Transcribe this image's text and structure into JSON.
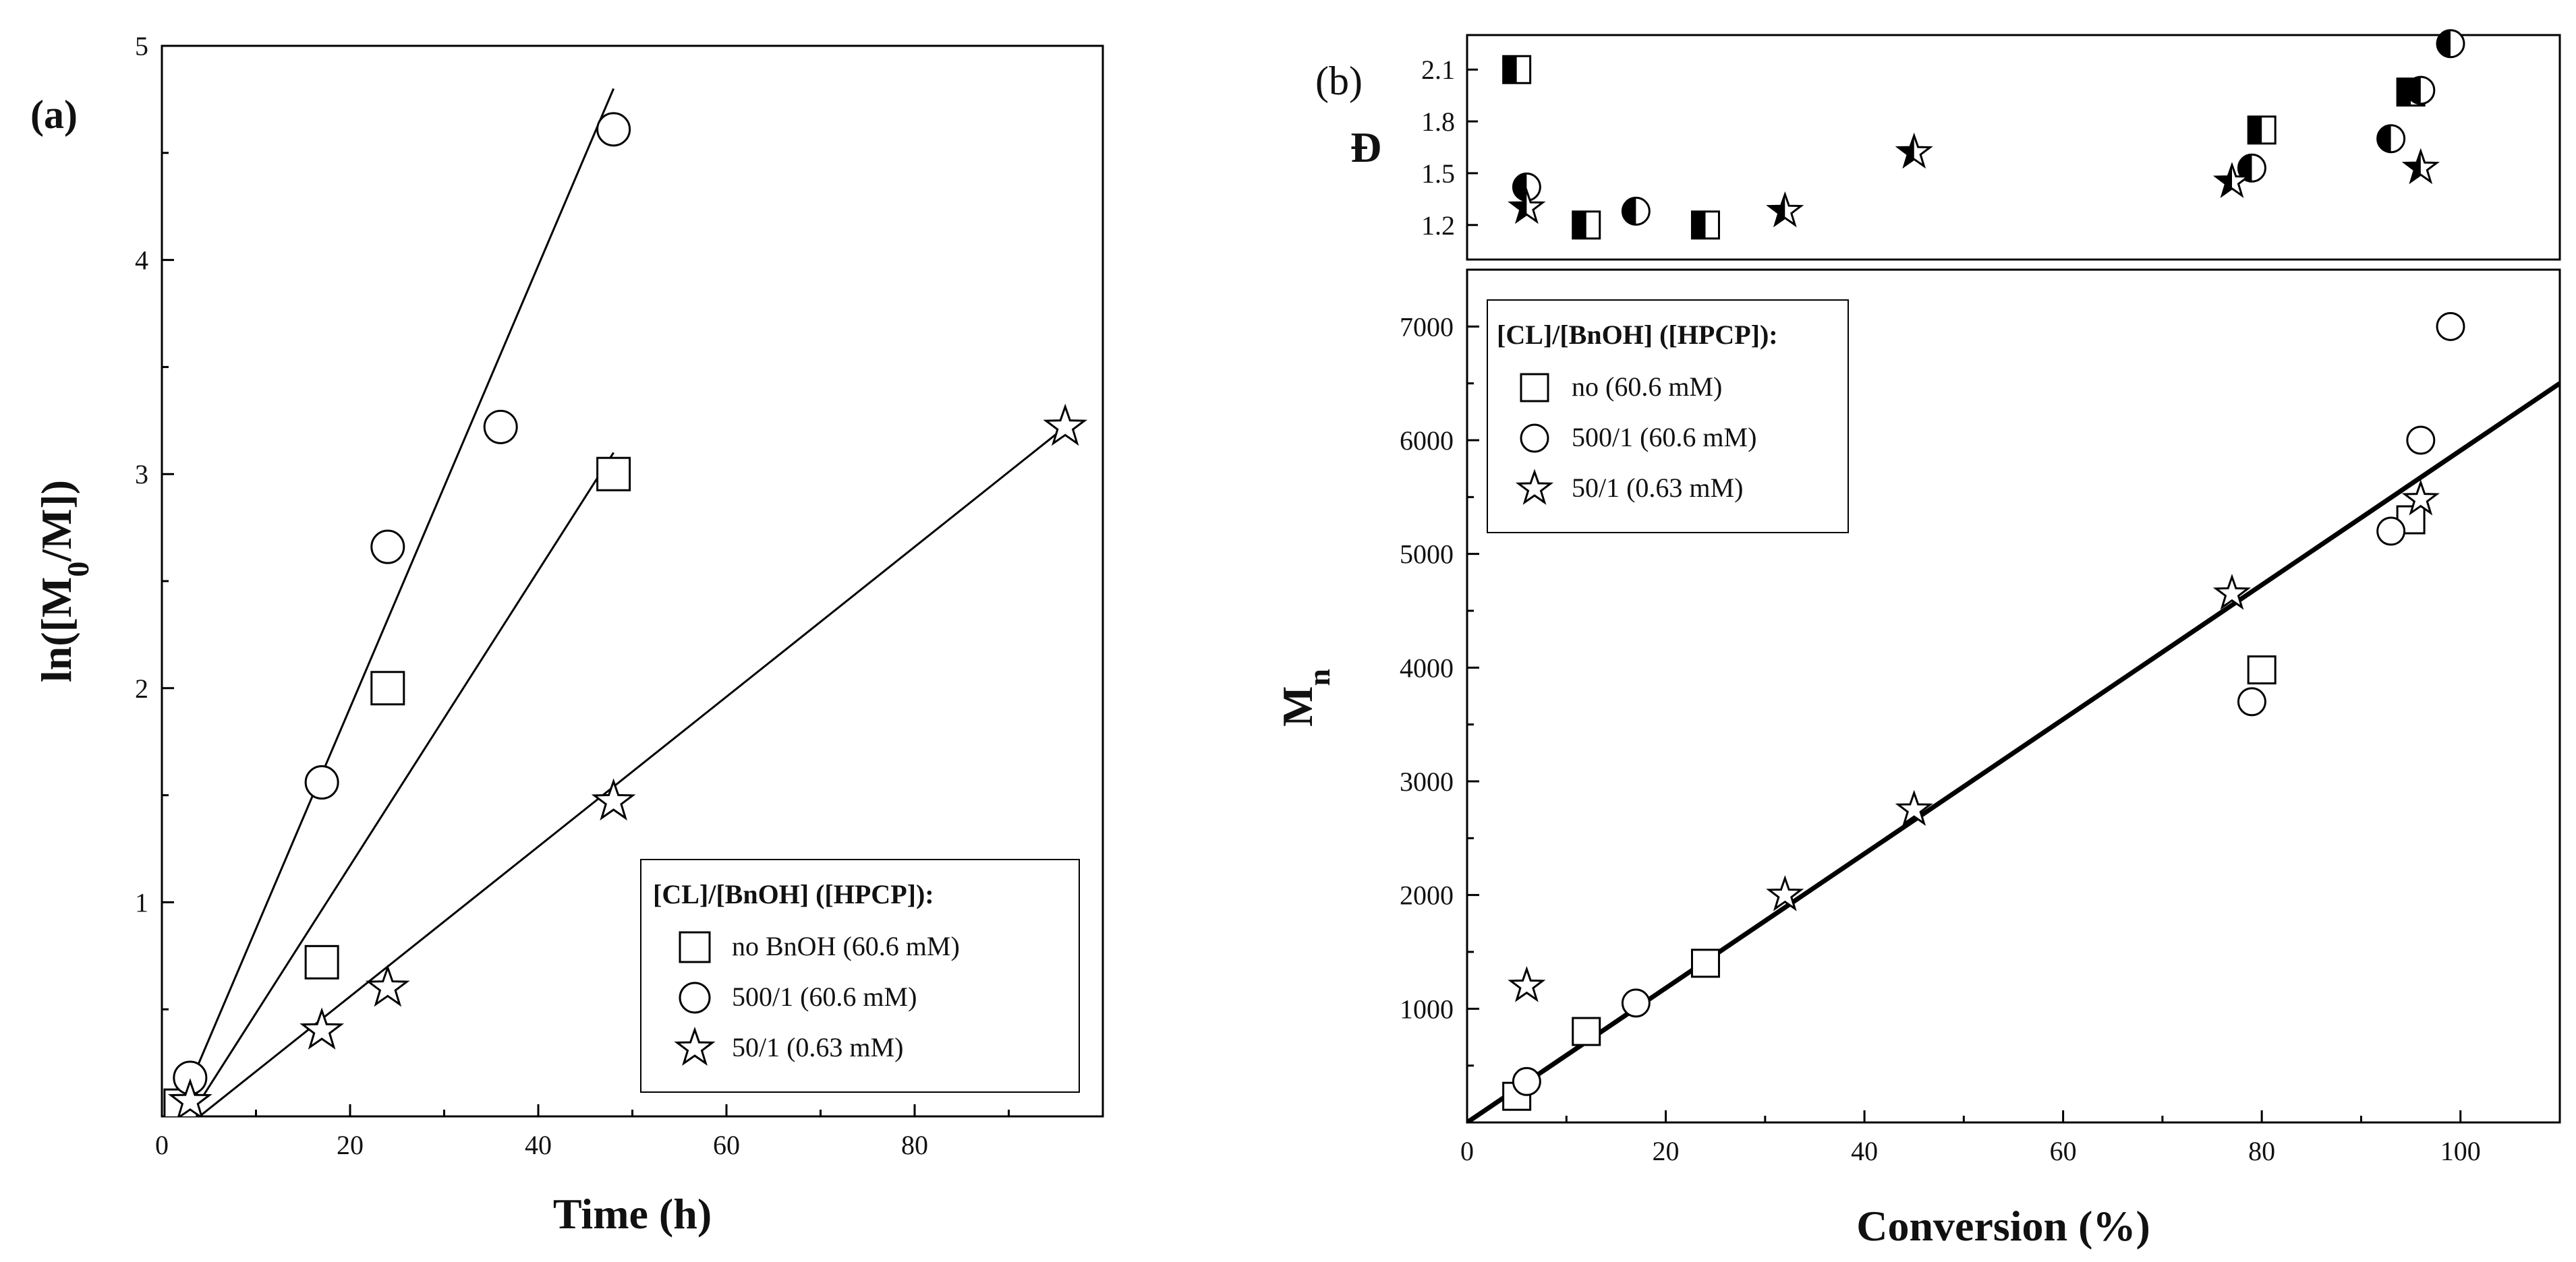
{
  "chart_data": [
    {
      "panel": "(a)",
      "type": "scatter",
      "xlabel": "Time (h)",
      "ylabel": "ln([M0/M])",
      "ylabel_parts": {
        "pre": "ln([M",
        "sub": "0",
        "post": "/M])"
      },
      "xlim": [
        0,
        100
      ],
      "ylim": [
        0,
        5
      ],
      "xticks": [
        0,
        20,
        40,
        60,
        80
      ],
      "yticks": [
        1,
        2,
        3,
        4,
        5
      ],
      "grid": false,
      "legend": {
        "position": "bottom-right",
        "title": "[CL]/[BnOH] ([HPCP]):",
        "entries": [
          {
            "marker": "square",
            "label": "no BnOH (60.6 mM)"
          },
          {
            "marker": "circle",
            "label": "500/1 (60.6 mM)"
          },
          {
            "marker": "star",
            "label": "50/1 (0.63 mM)"
          }
        ]
      },
      "series": [
        {
          "name": "no BnOH (60.6 mM)",
          "marker": "square",
          "points": [
            [
              2,
              0.05
            ],
            [
              17,
              0.72
            ],
            [
              24,
              2.0
            ],
            [
              48,
              3.0
            ]
          ],
          "fit": [
            [
              3,
              0.0
            ],
            [
              48,
              3.1
            ]
          ]
        },
        {
          "name": "500/1 (60.6 mM)",
          "marker": "circle",
          "points": [
            [
              3,
              0.18
            ],
            [
              17,
              1.56
            ],
            [
              24,
              2.66
            ],
            [
              36,
              3.22
            ],
            [
              48,
              4.61
            ]
          ],
          "fit": [
            [
              2,
              0.05
            ],
            [
              48,
              4.8
            ]
          ]
        },
        {
          "name": "50/1 (0.63 mM)",
          "marker": "star",
          "points": [
            [
              3,
              0.07
            ],
            [
              17,
              0.4
            ],
            [
              24,
              0.6
            ],
            [
              48,
              1.47
            ],
            [
              96,
              3.22
            ]
          ],
          "fit": [
            [
              4,
              0.0
            ],
            [
              96,
              3.22
            ]
          ]
        }
      ]
    },
    {
      "panel": "(b)",
      "type": "scatter",
      "xlabel": "Conversion (%)",
      "ylabel": "Mn",
      "ylabel_parts": {
        "pre": "M",
        "sub": "n",
        "post": ""
      },
      "xlim": [
        0,
        110
      ],
      "ylim": [
        0,
        7500
      ],
      "xticks": [
        0,
        20,
        40,
        60,
        80,
        100
      ],
      "yticks": [
        1000,
        2000,
        3000,
        4000,
        5000,
        6000,
        7000
      ],
      "grid": false,
      "legend": {
        "position": "top-left",
        "title": "[CL]/[BnOH] ([HPCP]):",
        "entries": [
          {
            "marker": "square",
            "label": "no (60.6 mM)"
          },
          {
            "marker": "circle",
            "label": "500/1 (60.6 mM)"
          },
          {
            "marker": "star",
            "label": "50/1 (0.63 mM)"
          }
        ]
      },
      "series": [
        {
          "name": "no (60.6 mM)",
          "marker": "square",
          "points": [
            [
              5,
              230
            ],
            [
              12,
              800
            ],
            [
              24,
              1400
            ],
            [
              80,
              3980
            ],
            [
              95,
              5300
            ]
          ]
        },
        {
          "name": "500/1 (60.6 mM)",
          "marker": "circle",
          "points": [
            [
              6,
              360
            ],
            [
              17,
              1050
            ],
            [
              79,
              3700
            ],
            [
              93,
              5200
            ],
            [
              96,
              6000
            ],
            [
              99,
              7000
            ]
          ]
        },
        {
          "name": "50/1 (0.63 mM)",
          "marker": "star",
          "points": [
            [
              6,
              1200
            ],
            [
              32,
              2000
            ],
            [
              45,
              2750
            ],
            [
              77,
              4650
            ],
            [
              96,
              5480
            ]
          ]
        }
      ],
      "fit": [
        [
          0,
          0
        ],
        [
          110,
          6500
        ]
      ]
    },
    {
      "panel": "(b) inset",
      "type": "scatter",
      "xlabel": "",
      "ylabel": "Đ",
      "xlim": [
        0,
        110
      ],
      "ylim": [
        1.0,
        2.3
      ],
      "yticks": [
        1.2,
        1.5,
        1.8,
        2.1
      ],
      "ytick_labels": [
        "1.2",
        "1.5",
        "1.8",
        "2.1"
      ],
      "series": [
        {
          "name": "no (60.6 mM)",
          "marker": "half-square",
          "points": [
            [
              5,
              2.1
            ],
            [
              12,
              1.2
            ],
            [
              24,
              1.2
            ],
            [
              80,
              1.75
            ],
            [
              95,
              1.97
            ]
          ]
        },
        {
          "name": "500/1 (60.6 mM)",
          "marker": "half-circle",
          "points": [
            [
              6,
              1.42
            ],
            [
              17,
              1.28
            ],
            [
              79,
              1.53
            ],
            [
              93,
              1.7
            ],
            [
              96,
              1.98
            ],
            [
              99,
              2.25
            ]
          ]
        },
        {
          "name": "50/1 (0.63 mM)",
          "marker": "half-star",
          "points": [
            [
              6,
              1.3
            ],
            [
              32,
              1.28
            ],
            [
              45,
              1.62
            ],
            [
              77,
              1.45
            ],
            [
              96,
              1.53
            ]
          ]
        }
      ]
    }
  ]
}
